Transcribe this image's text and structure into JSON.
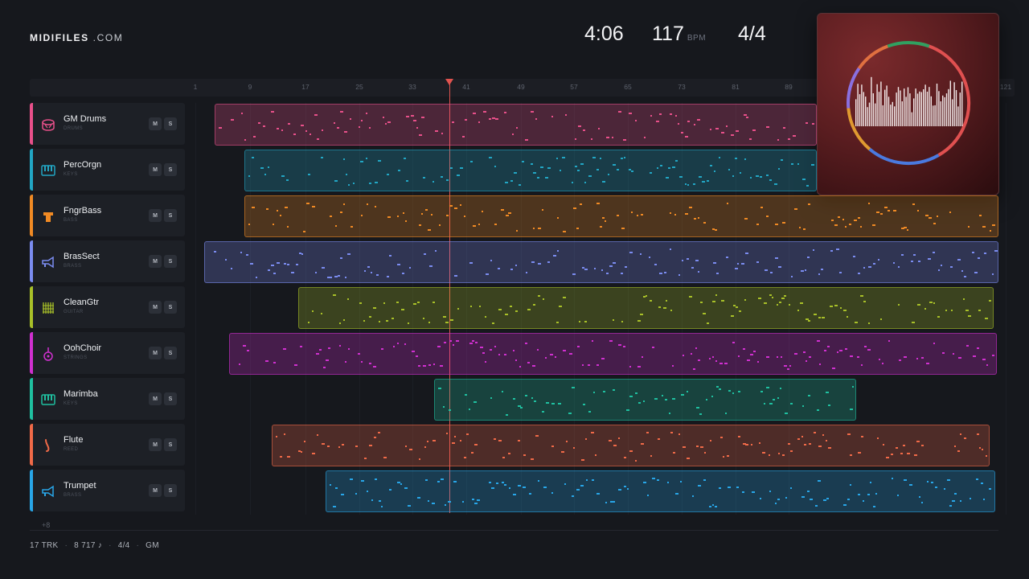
{
  "brand": {
    "name": "MIDIFILES",
    "suffix": ".COM"
  },
  "header": {
    "duration": "4:06",
    "bpm": "117",
    "bpm_unit": "BPM",
    "time_signature": "4/4"
  },
  "ruler": {
    "ticks": [
      "1",
      "9",
      "17",
      "25",
      "33",
      "41",
      "49",
      "57",
      "65",
      "73",
      "81",
      "89",
      "121"
    ]
  },
  "tracks": [
    {
      "name": "GM Drums",
      "category": "DRUMS",
      "color": "#e8508a",
      "icon": "drum-icon",
      "mute": "M",
      "solo": "S"
    },
    {
      "name": "PercOrgn",
      "category": "KEYS",
      "color": "#22a6c4",
      "icon": "keys-icon",
      "mute": "M",
      "solo": "S"
    },
    {
      "name": "FngrBass",
      "category": "BASS",
      "color": "#f08a24",
      "icon": "bass-icon",
      "mute": "M",
      "solo": "S"
    },
    {
      "name": "BrasSect",
      "category": "BRASS",
      "color": "#7b8cf0",
      "icon": "trumpet-icon",
      "mute": "M",
      "solo": "S"
    },
    {
      "name": "CleanGtr",
      "category": "GUITAR",
      "color": "#a8c028",
      "icon": "guitar-icon",
      "mute": "M",
      "solo": "S"
    },
    {
      "name": "OohChoir",
      "category": "STRINGS",
      "color": "#d030d0",
      "icon": "violin-icon",
      "mute": "M",
      "solo": "S"
    },
    {
      "name": "Marimba",
      "category": "KEYS",
      "color": "#1fc0a0",
      "icon": "keys-icon",
      "mute": "M",
      "solo": "S"
    },
    {
      "name": "Flute",
      "category": "REED",
      "color": "#f06a48",
      "icon": "flute-icon",
      "mute": "M",
      "solo": "S"
    },
    {
      "name": "Trumpet",
      "category": "BRASS",
      "color": "#28a6e8",
      "icon": "trumpet-icon",
      "mute": "M",
      "solo": "S"
    }
  ],
  "more_tracks": "+8",
  "footer": {
    "tracks": "17 TRK",
    "notes": "8 717 ♪",
    "meter": "4/4",
    "standard": "GM"
  }
}
